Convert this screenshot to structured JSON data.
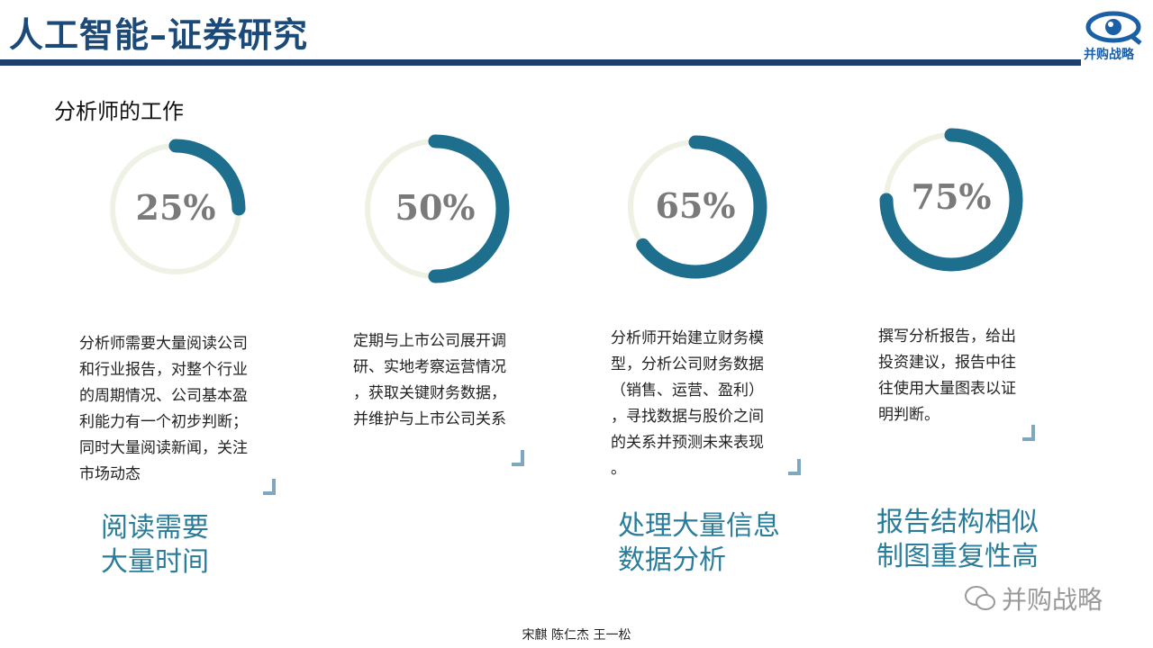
{
  "header": {
    "title": "人工智能–证券研究",
    "logo_text": "并购战略"
  },
  "subtitle": "分析师的工作",
  "colors": {
    "accent": "#1e6e8e",
    "track": "#eef2e4",
    "heading": "#2a7d9a"
  },
  "cards": [
    {
      "percent": 25,
      "label": "25%",
      "desc": [
        "分析师需要大量阅读公司",
        "和行业报告，对整个行业",
        "的周期情况、公司基本盈",
        "利能力有一个初步判断；",
        "同时大量阅读新闻，关注",
        "市场动态"
      ],
      "highlight": [
        "阅读需要",
        "大量时间"
      ]
    },
    {
      "percent": 50,
      "label": "50%",
      "desc": [
        "定期与上市公司展开调",
        "研、实地考察运营情况",
        "，获取关键财务数据，",
        "并维护与上市公司关系"
      ],
      "highlight": []
    },
    {
      "percent": 65,
      "label": "65%",
      "desc": [
        "分析师开始建立财务模",
        "型，分析公司财务数据",
        "（销售、运营、盈利）",
        "，寻找数据与股价之间",
        "的关系并预测未来表现",
        "。"
      ],
      "highlight": [
        "处理大量信息",
        "数据分析"
      ]
    },
    {
      "percent": 75,
      "label": "75%",
      "desc": [
        "撰写分析报告，给出",
        "投资建议，报告中往",
        "往使用大量图表以证",
        "明判断。"
      ],
      "highlight": [
        "报告结构相似",
        "制图重复性高"
      ]
    }
  ],
  "watermark": "并购战略",
  "footer": "宋麒 陈仁杰 王一松"
}
